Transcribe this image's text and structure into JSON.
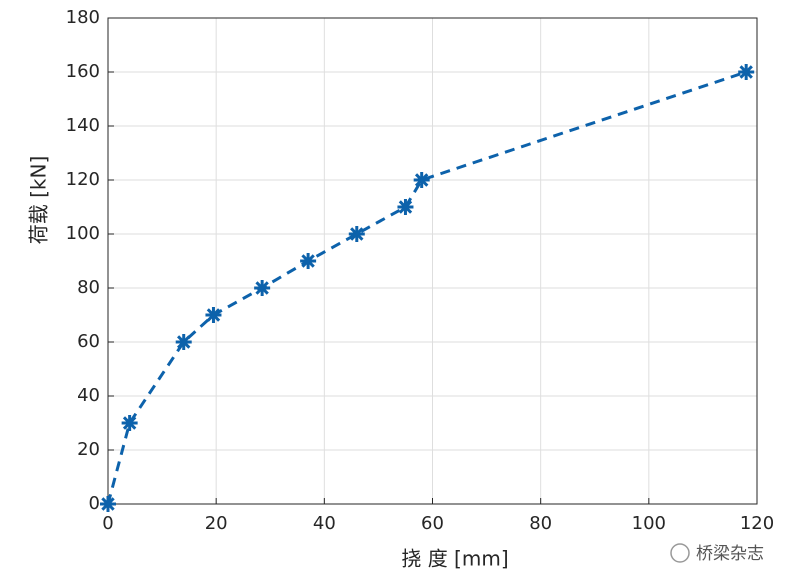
{
  "chart_data": {
    "type": "line",
    "xlabel": "挠 度 [mm]",
    "ylabel": "荷载 [kN]",
    "x": [
      0,
      4,
      14,
      19.5,
      28.5,
      37,
      46,
      55,
      58,
      118
    ],
    "series": [
      {
        "name": "荷载",
        "color": "#0d62ab",
        "values": [
          0,
          30,
          60,
          70,
          80,
          90,
          100,
          110,
          120,
          160
        ]
      }
    ],
    "xlim": [
      0,
      120
    ],
    "xticks": [
      0,
      20,
      40,
      60,
      80,
      100,
      120
    ],
    "ylim": [
      0,
      180
    ],
    "yticks": [
      0,
      20,
      40,
      60,
      80,
      100,
      120,
      140,
      160,
      180
    ],
    "grid": true,
    "legend": false
  },
  "watermark": "桥梁杂志"
}
